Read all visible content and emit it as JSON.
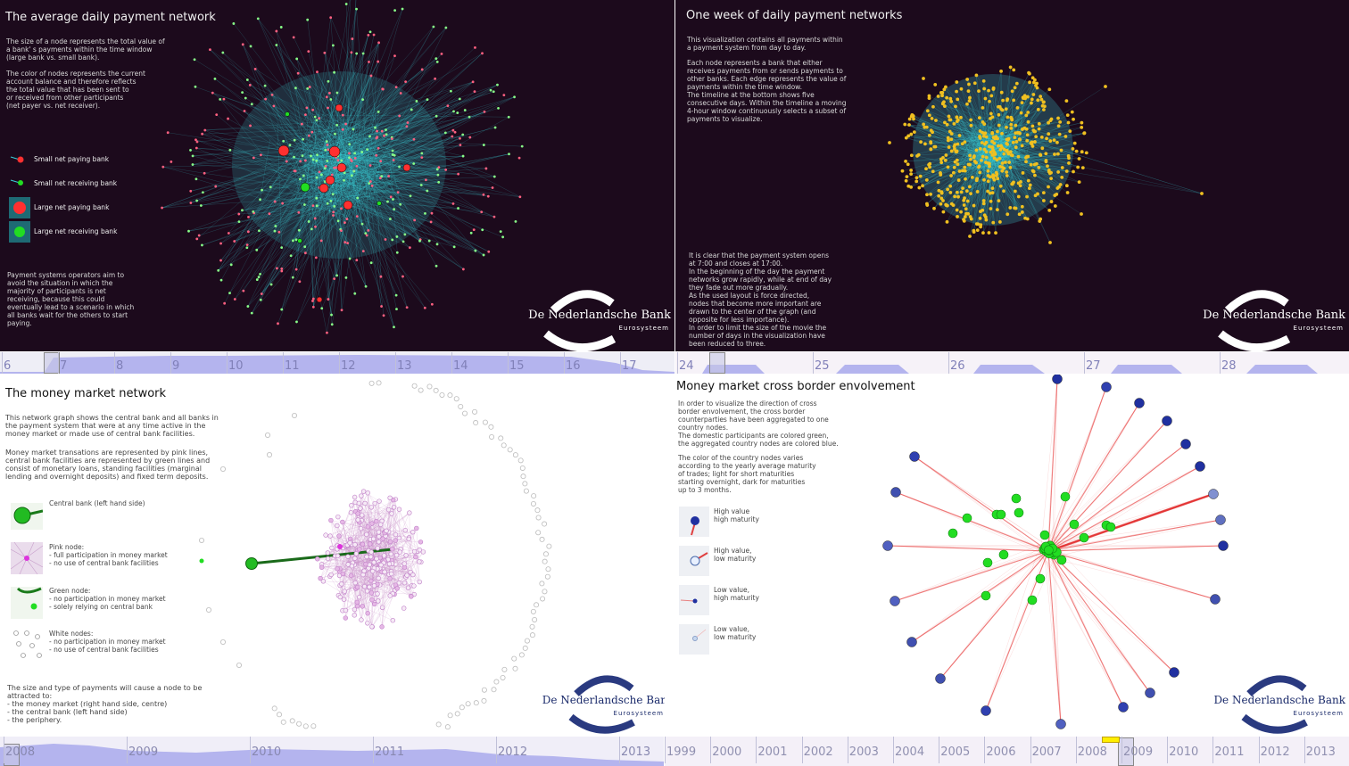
{
  "colors": {
    "dark_bg": "#1c0a1c",
    "edge_cyan": "#3ad0d8",
    "node_red": "#ff3030",
    "node_green": "#22dd22",
    "node_yellow": "#f0c020",
    "node_pink": "#cc66cc",
    "country_blue": "#3040b0",
    "timeline_fill": "#b4b4ee"
  },
  "panel1": {
    "title": "The average daily payment network",
    "para1": "The size of a node represents the total value of\na bank' s payments within the time window\n(large bank vs. small bank).",
    "para2": "The color of nodes represents the current\naccount balance and therefore reflects\nthe total value that has been sent to\nor received from other participants\n(net payer vs. net receiver).",
    "legend": [
      "Small net paying bank",
      "Small net receiving bank",
      "Large net paying bank",
      "Large net receiving bank"
    ],
    "para3": "Payment systems operators aim to\navoid the situation in which the\nmajority of participants is net\nreceiving, because this could\neventually lead to a scenario in which\nall banks wait for the others to start\npaying."
  },
  "panel2": {
    "title": "One week of daily payment networks",
    "para1": "This visualization contains all payments within\na payment system from day to day.",
    "para2": "Each node represents a bank that either\nreceives payments from or sends payments to\nother banks. Each edge represents the value of\npayments within the time window.\nThe timeline at the bottom shows five\nconsecutive days. Within the timeline a moving\n4-hour window continuously selects a subset of\npayments to visualize.",
    "para3": "It is clear that the payment system opens\nat 7:00 and closes at 17:00.\nIn the beginning of the day the payment\nnetworks grow rapidly, while at end of day\nthey fade out more gradually.\nAs the used layout is force directed,\nnodes that become more important are\ndrawn to the center of the graph (and\nopposite for less importance).\nIn order to limit the size of the movie the\nnumber of days in the visualization have\nbeen reduced to three."
  },
  "panel3": {
    "title": "The money market network",
    "para1": "This network graph shows the central bank and all banks in\nthe payment system that were at any time active in the\nmoney market or made use of central bank facilities.",
    "para2": "Money market transations are represented by pink lines,\ncentral bank facilities are represented by green lines and\nconsist of monetary loans, standing facilities (marginal\nlending and overnight deposits) and fixed term deposits.",
    "legend": [
      "Central bank (left hand side)",
      "Pink node:\n- full participation in money market\n- no use of central bank facilities",
      "Green node:\n- no participation in money market\n- solely relying on central bank",
      "White nodes:\n- no participation in money market\n- no use of central bank facilities"
    ],
    "para3": "The size and type of payments will cause a node to be\nattracted to:\n- the money market (right hand side, centre)\n- the central bank (left hand side)\n- the periphery."
  },
  "panel4": {
    "title": "Money market cross border envolvement",
    "para1": "In order to visualize the direction of cross\nborder envolvement, the cross border\ncounterparties have been aggregated to one\ncountry nodes.\nThe domestic participants are colored green,\nthe aggregated country nodes are colored blue.",
    "para2": "The color of the country nodes varies\naccording to the yearly average maturity\nof trades; light for short maturities\nstarting overnight, dark for maturities\nup to 3 months.",
    "legend": [
      "High value\nhigh maturity",
      "High value,\nlow maturity",
      "Low value,\nhigh maturity",
      "Low value,\nlow maturity"
    ]
  },
  "logos": [
    {
      "name": "De Nederlandsche Bank",
      "sub": "Eurosysteem"
    },
    {
      "name": "De Nederlandsche Bank",
      "sub": "Eurosysteem"
    },
    {
      "name": "De Nederlandsche Ban",
      "sub": "Eurosysteem"
    },
    {
      "name": "De Nederlandsche Bank",
      "sub": "Eurosysteem"
    }
  ],
  "timeline1": [
    "6",
    "7",
    "8",
    "9",
    "10",
    "11",
    "12",
    "13",
    "14",
    "15",
    "16",
    "17"
  ],
  "timeline2": [
    "24",
    "25",
    "26",
    "27",
    "28"
  ],
  "timeline3": [
    "2008",
    "2009",
    "2010",
    "2011",
    "2012",
    "2013"
  ],
  "timeline4": [
    "1999",
    "2000",
    "2001",
    "2002",
    "2003",
    "2004",
    "2005",
    "2006",
    "2007",
    "2008",
    "2009",
    "2010",
    "2011",
    "2012",
    "2013"
  ]
}
